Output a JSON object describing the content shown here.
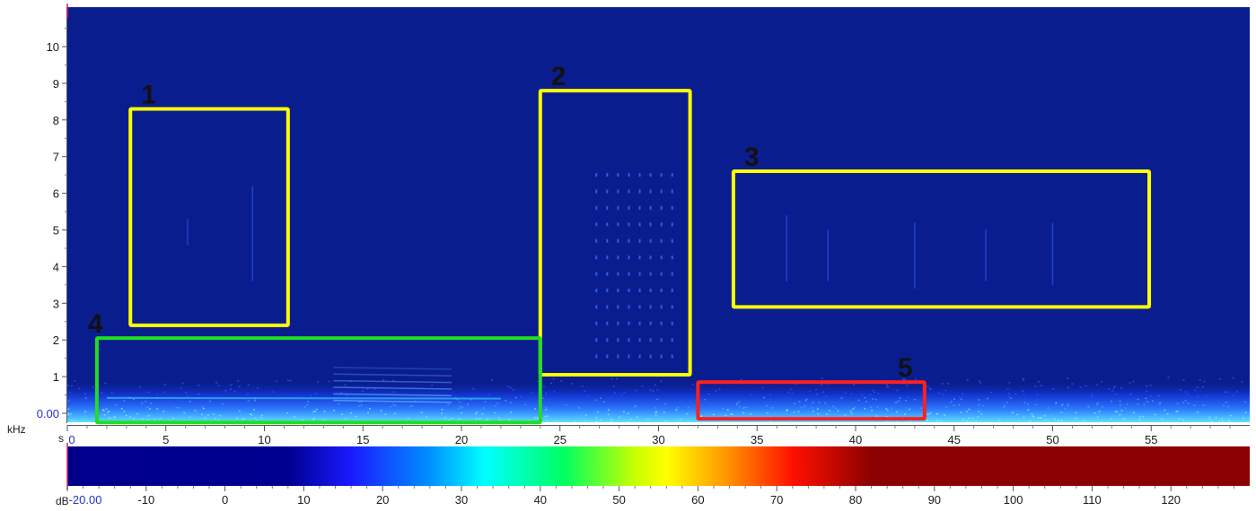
{
  "chart_data": {
    "type": "heatmap",
    "title": "",
    "xlabel": "s",
    "ylabel": "kHz",
    "xlim": [
      0,
      60
    ],
    "ylim": [
      -0.5,
      11
    ],
    "x_ticks": [
      0,
      5,
      10,
      15,
      20,
      25,
      30,
      35,
      40,
      45,
      50,
      55
    ],
    "x_tick_labels": [
      "0",
      "5",
      "10",
      "15",
      "20",
      "25",
      "30",
      "35",
      "40",
      "45",
      "50",
      "55"
    ],
    "y_ticks": [
      0,
      1,
      2,
      3,
      4,
      5,
      6,
      7,
      8,
      9,
      10
    ],
    "y_tick_labels": [
      "0.00",
      "1",
      "2",
      "3",
      "4",
      "5",
      "6",
      "7",
      "8",
      "9",
      "10"
    ],
    "colorbar": {
      "label": "dB",
      "range": [
        -20,
        130
      ],
      "ticks": [
        -20,
        -10,
        0,
        10,
        20,
        30,
        40,
        50,
        60,
        70,
        80,
        90,
        100,
        110,
        120
      ],
      "tick_labels": [
        "-20.00",
        "-10",
        "0",
        "10",
        "20",
        "30",
        "40",
        "50",
        "60",
        "70",
        "80",
        "90",
        "100",
        "110",
        "120"
      ],
      "stops": [
        {
          "db": -20,
          "color": "#00008c"
        },
        {
          "db": 8,
          "color": "#000090"
        },
        {
          "db": 16,
          "color": "#1a1aff"
        },
        {
          "db": 26,
          "color": "#0090ff"
        },
        {
          "db": 33,
          "color": "#00ffff"
        },
        {
          "db": 43,
          "color": "#00ff60"
        },
        {
          "db": 52,
          "color": "#c8ff00"
        },
        {
          "db": 56,
          "color": "#ffff00"
        },
        {
          "db": 64,
          "color": "#ff9000"
        },
        {
          "db": 72,
          "color": "#ff1000"
        },
        {
          "db": 82,
          "color": "#8b0000"
        },
        {
          "db": 130,
          "color": "#8b0000"
        }
      ]
    },
    "background_color": "#0a1d8f",
    "annotations": [
      {
        "label": "1",
        "x": [
          3.2,
          11.2
        ],
        "y": [
          2.4,
          8.3
        ],
        "color": "#ffff00"
      },
      {
        "label": "2",
        "x": [
          24.0,
          31.6
        ],
        "y": [
          1.05,
          8.8
        ],
        "color": "#ffff00"
      },
      {
        "label": "3",
        "x": [
          33.8,
          54.9
        ],
        "y": [
          2.9,
          6.6
        ],
        "color": "#ffff00"
      },
      {
        "label": "4",
        "x": [
          1.5,
          24.0
        ],
        "y": [
          -0.25,
          2.05
        ],
        "color": "#22dd22"
      },
      {
        "label": "5",
        "x": [
          32.0,
          43.5
        ],
        "y": [
          -0.15,
          0.85
        ],
        "color": "#ff2020"
      }
    ]
  }
}
